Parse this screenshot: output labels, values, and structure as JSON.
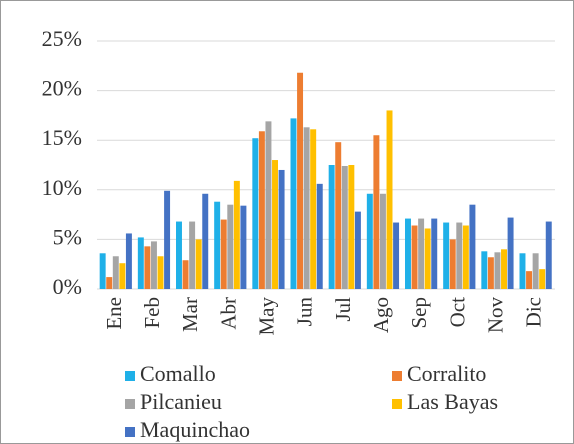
{
  "chart_data": {
    "type": "bar",
    "categories": [
      "Ene",
      "Feb",
      "Mar",
      "Abr",
      "May",
      "Jun",
      "Jul",
      "Ago",
      "Sep",
      "Oct",
      "Nov",
      "Dic"
    ],
    "series": [
      {
        "name": "Comallo",
        "color": "#1fb0e8",
        "values": [
          3.6,
          5.2,
          6.8,
          8.8,
          15.2,
          17.2,
          12.5,
          9.6,
          7.1,
          6.7,
          3.8,
          3.6
        ]
      },
      {
        "name": "Corralito",
        "color": "#ed7d31",
        "values": [
          1.2,
          4.3,
          2.9,
          7.0,
          15.9,
          21.8,
          14.8,
          15.5,
          6.4,
          5.0,
          3.2,
          1.8
        ]
      },
      {
        "name": "Pilcanieu",
        "color": "#a5a5a5",
        "values": [
          3.3,
          4.8,
          6.8,
          8.5,
          16.9,
          16.3,
          12.4,
          9.6,
          7.1,
          6.7,
          3.7,
          3.6
        ]
      },
      {
        "name": "Las Bayas",
        "color": "#ffc000",
        "values": [
          2.6,
          3.3,
          5.0,
          10.9,
          13.0,
          16.1,
          12.5,
          18.0,
          6.1,
          6.4,
          4.0,
          2.0
        ]
      },
      {
        "name": "Maquinchao",
        "color": "#4472c4",
        "values": [
          5.6,
          9.9,
          9.6,
          8.4,
          12.0,
          10.6,
          7.8,
          6.7,
          7.1,
          8.5,
          7.2,
          6.8
        ]
      }
    ],
    "ylim": [
      0,
      25
    ],
    "yticks": [
      {
        "value": 0,
        "label": "0%"
      },
      {
        "value": 5,
        "label": "5%"
      },
      {
        "value": 10,
        "label": "10%"
      },
      {
        "value": 15,
        "label": "15%"
      },
      {
        "value": 20,
        "label": "20%"
      },
      {
        "value": 25,
        "label": "25%"
      }
    ],
    "grid": true
  }
}
